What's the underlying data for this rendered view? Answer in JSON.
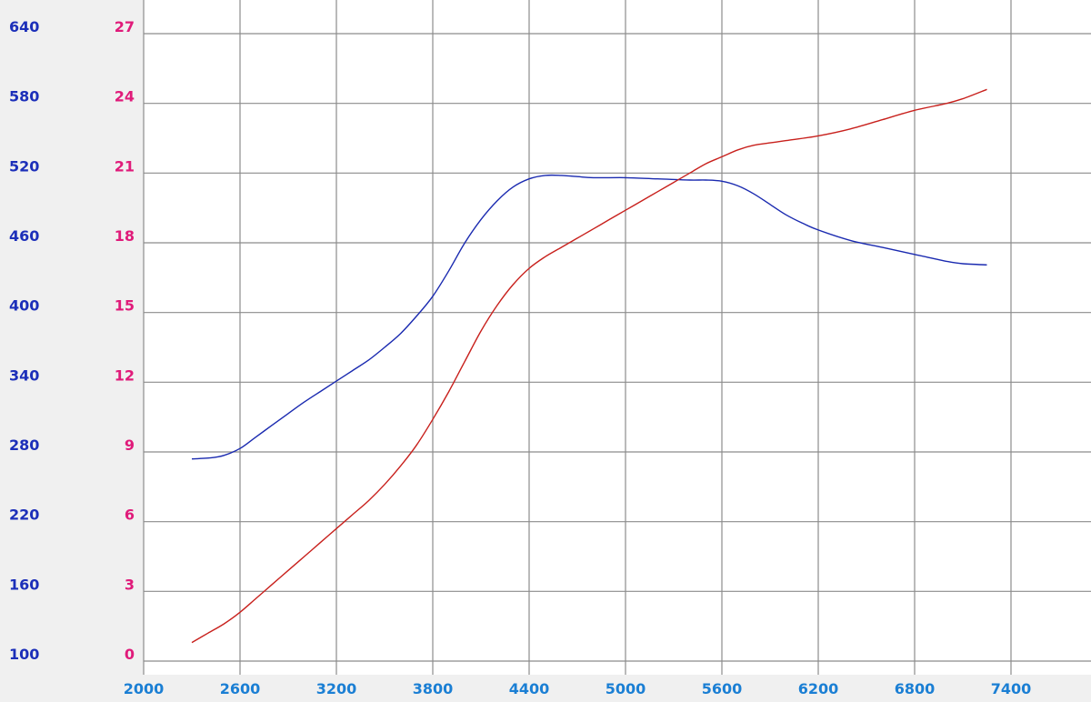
{
  "chart_data": {
    "type": "line",
    "x_ticks": [
      2000,
      2600,
      3200,
      3800,
      4400,
      5000,
      5600,
      6200,
      6800,
      7400
    ],
    "xlim": [
      2000,
      8000
    ],
    "y_left_ticks": [
      "640",
      "580",
      "520",
      "460",
      "400",
      "340",
      "280",
      "220",
      "160",
      "100"
    ],
    "y_left_range": [
      100,
      640
    ],
    "y_right_ticks": [
      "27",
      "24",
      "21",
      "18",
      "15",
      "12",
      "9",
      "6",
      "3",
      "0"
    ],
    "y_right_range": [
      0,
      27
    ],
    "grid": true,
    "series": [
      {
        "axis": "left",
        "color": "#1a2ab0",
        "x": [
          2300,
          2420,
          2500,
          2600,
          2700,
          2800,
          2900,
          3000,
          3100,
          3200,
          3300,
          3400,
          3500,
          3600,
          3700,
          3800,
          3900,
          4000,
          4100,
          4200,
          4300,
          4400,
          4500,
          4600,
          4700,
          4800,
          5000,
          5200,
          5400,
          5500,
          5600,
          5700,
          5800,
          5900,
          6000,
          6100,
          6200,
          6400,
          6600,
          6800,
          7000,
          7100,
          7250
        ],
        "y": [
          274,
          275,
          277,
          283,
          293,
          303,
          313,
          323,
          332,
          341,
          350,
          359,
          370,
          382,
          397,
          414,
          436,
          460,
          480,
          496,
          508,
          515,
          518,
          518,
          517,
          516,
          516,
          515,
          514,
          514,
          513,
          509,
          502,
          493,
          484,
          477,
          471,
          462,
          456,
          450,
          444,
          442,
          441
        ]
      },
      {
        "axis": "right",
        "color": "#c8201c",
        "x": [
          2300,
          2400,
          2500,
          2600,
          2700,
          2800,
          2900,
          3000,
          3100,
          3200,
          3300,
          3400,
          3500,
          3600,
          3700,
          3800,
          3900,
          4000,
          4100,
          4200,
          4300,
          4400,
          4500,
          4600,
          4700,
          4800,
          4900,
          5000,
          5100,
          5200,
          5300,
          5400,
          5500,
          5600,
          5700,
          5800,
          5900,
          6000,
          6200,
          6400,
          6600,
          6800,
          7000,
          7100,
          7250
        ],
        "y": [
          0.8,
          1.2,
          1.6,
          2.1,
          2.7,
          3.3,
          3.9,
          4.5,
          5.1,
          5.7,
          6.3,
          6.9,
          7.6,
          8.4,
          9.3,
          10.4,
          11.6,
          12.9,
          14.2,
          15.3,
          16.2,
          16.9,
          17.4,
          17.8,
          18.2,
          18.6,
          19.0,
          19.4,
          19.8,
          20.2,
          20.6,
          21.0,
          21.4,
          21.7,
          22.0,
          22.2,
          22.3,
          22.4,
          22.6,
          22.9,
          23.3,
          23.7,
          24.0,
          24.2,
          24.6
        ]
      }
    ]
  }
}
